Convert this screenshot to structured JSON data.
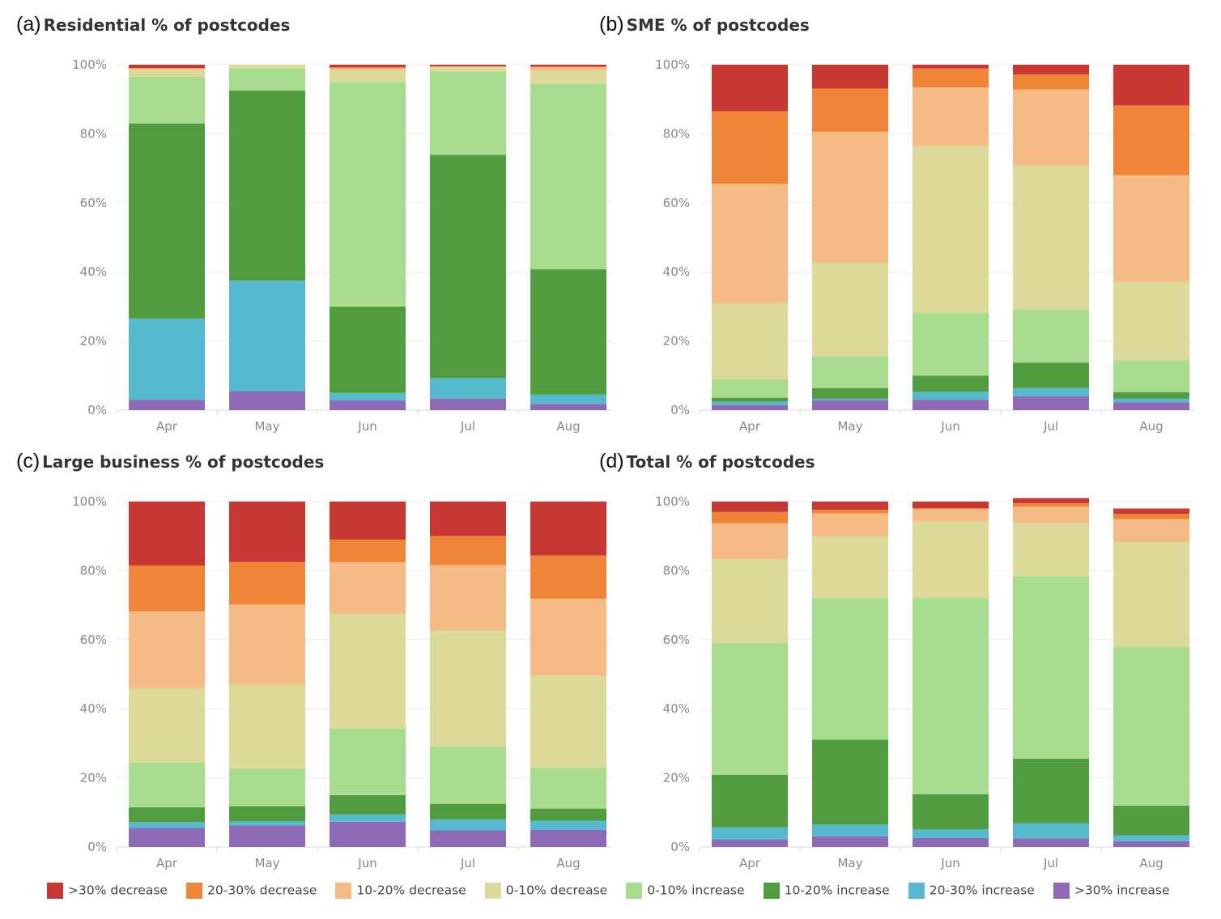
{
  "legend_title": "",
  "chart_data": [
    {
      "type": "bar",
      "stacked": true,
      "panel_letter": "(a)",
      "title": "Residential % of postcodes",
      "categories": [
        "Apr",
        "May",
        "Jun",
        "Jul",
        "Aug"
      ],
      "yticks": [
        "0%",
        "20%",
        "40%",
        "60%",
        "80%",
        "100%"
      ],
      "ylim": [
        0,
        100
      ],
      "grid": true,
      "series": [
        {
          "name": ">30% increase",
          "values": [
            3,
            5.5,
            2.8,
            3.3,
            1.8
          ]
        },
        {
          "name": "20-30% increase",
          "values": [
            23.5,
            32,
            2.2,
            6,
            2.7
          ]
        },
        {
          "name": "10-20% increase",
          "values": [
            56.5,
            55,
            25,
            64.6,
            36.3
          ]
        },
        {
          "name": "0-10% increase",
          "values": [
            13.5,
            6.5,
            65,
            24.1,
            53.7
          ]
        },
        {
          "name": "0-10% decrease",
          "values": [
            2,
            1,
            3.5,
            1.5,
            3.9
          ]
        },
        {
          "name": "10-20% decrease",
          "values": [
            0.5,
            0,
            0.5,
            0,
            1
          ]
        },
        {
          "name": "20-30% decrease",
          "values": [
            0,
            0,
            0.3,
            0,
            0
          ]
        },
        {
          "name": ">30% decrease",
          "values": [
            1,
            0,
            0.7,
            0.5,
            0.6
          ]
        }
      ]
    },
    {
      "type": "bar",
      "stacked": true,
      "panel_letter": "(b)",
      "title": "SME % of postcodes",
      "categories": [
        "Apr",
        "May",
        "Jun",
        "Jul",
        "Aug"
      ],
      "yticks": [
        "0%",
        "20%",
        "40%",
        "60%",
        "80%",
        "100%"
      ],
      "ylim": [
        0,
        100
      ],
      "grid": true,
      "series": [
        {
          "name": ">30% increase",
          "values": [
            1.5,
            2.8,
            3,
            4,
            2.3
          ]
        },
        {
          "name": "20-30% increase",
          "values": [
            1,
            0.5,
            2.4,
            2.4,
            1
          ]
        },
        {
          "name": "10-20% increase",
          "values": [
            1.1,
            3.1,
            4.6,
            7.3,
            1.9
          ]
        },
        {
          "name": "0-10% increase",
          "values": [
            5.3,
            9.2,
            18.1,
            15.5,
            9.2
          ]
        },
        {
          "name": "0-10% decrease",
          "values": [
            22.1,
            27,
            48.3,
            41.7,
            22.7
          ]
        },
        {
          "name": "10-20% decrease",
          "values": [
            34.5,
            38,
            17,
            21.9,
            30.9
          ]
        },
        {
          "name": "20-30% decrease",
          "values": [
            21,
            12.5,
            5.5,
            4.4,
            20.2
          ]
        },
        {
          "name": ">30% decrease",
          "values": [
            13.5,
            6.9,
            1.1,
            2.8,
            11.8
          ]
        }
      ]
    },
    {
      "type": "bar",
      "stacked": true,
      "panel_letter": "(c)",
      "title": "Large business % of postcodes",
      "categories": [
        "Apr",
        "May",
        "Jun",
        "Jul",
        "Aug"
      ],
      "yticks": [
        "0%",
        "20%",
        "40%",
        "60%",
        "80%",
        "100%"
      ],
      "ylim": [
        0,
        100
      ],
      "grid": true,
      "series": [
        {
          "name": ">30% increase",
          "values": [
            5.5,
            6.2,
            7.3,
            4.8,
            5
          ]
        },
        {
          "name": "20-30% increase",
          "values": [
            1.7,
            1.2,
            2.1,
            3.2,
            2.6
          ]
        },
        {
          "name": "10-20% increase",
          "values": [
            4.3,
            4.4,
            5.6,
            4.5,
            3.5
          ]
        },
        {
          "name": "0-10% increase",
          "values": [
            12.9,
            10.9,
            19.2,
            16.6,
            11.9
          ]
        },
        {
          "name": "0-10% decrease",
          "values": [
            21.6,
            24.4,
            33.3,
            33.5,
            26.6
          ]
        },
        {
          "name": "10-20% decrease",
          "values": [
            22.2,
            23.1,
            14.9,
            19,
            22.3
          ]
        },
        {
          "name": "20-30% decrease",
          "values": [
            13.3,
            12.3,
            6.6,
            8.4,
            12.5
          ]
        },
        {
          "name": ">30% decrease",
          "values": [
            18.5,
            17.5,
            11,
            10,
            15.6
          ]
        }
      ]
    },
    {
      "type": "bar",
      "stacked": true,
      "panel_letter": "(d)",
      "title": "Total % of postcodes",
      "categories": [
        "Apr",
        "May",
        "Jun",
        "Jul",
        "Aug"
      ],
      "yticks": [
        "0%",
        "20%",
        "40%",
        "60%",
        "80%",
        "100%"
      ],
      "ylim": [
        0,
        100
      ],
      "grid": true,
      "series": [
        {
          "name": ">30% increase",
          "values": [
            2.2,
            3.1,
            2.6,
            2.5,
            1.7
          ]
        },
        {
          "name": "20-30% increase",
          "values": [
            3.5,
            3.4,
            2.5,
            4.4,
            1.7
          ]
        },
        {
          "name": "10-20% increase",
          "values": [
            15.2,
            24.6,
            10.2,
            18.7,
            8.6
          ]
        },
        {
          "name": "0-10% increase",
          "values": [
            38.1,
            40.9,
            56.8,
            52.8,
            46
          ]
        },
        {
          "name": "0-10% decrease",
          "values": [
            24.3,
            18,
            22.1,
            15.4,
            30.2
          ]
        },
        {
          "name": "10-20% decrease",
          "values": [
            10.4,
            6.6,
            3.6,
            4.7,
            6.7
          ]
        },
        {
          "name": "20-30% decrease",
          "values": [
            3.3,
            1,
            0.3,
            1,
            1.5
          ]
        },
        {
          "name": ">30% decrease",
          "values": [
            3,
            2.4,
            1.9,
            1.5,
            1.6
          ]
        }
      ]
    }
  ],
  "legend": [
    {
      "label": ">30% decrease",
      "color": "#c73834"
    },
    {
      "label": "20-30% decrease",
      "color": "#ef8637"
    },
    {
      "label": "10-20% decrease",
      "color": "#f4bc84"
    },
    {
      "label": "0-10% decrease",
      "color": "#dcda99"
    },
    {
      "label": "0-10% increase",
      "color": "#a8dc8e"
    },
    {
      "label": "10-20% increase",
      "color": "#519c3e"
    },
    {
      "label": "20-30% increase",
      "color": "#56bace"
    },
    {
      "label": ">30% increase",
      "color": "#8e6ab6"
    }
  ]
}
